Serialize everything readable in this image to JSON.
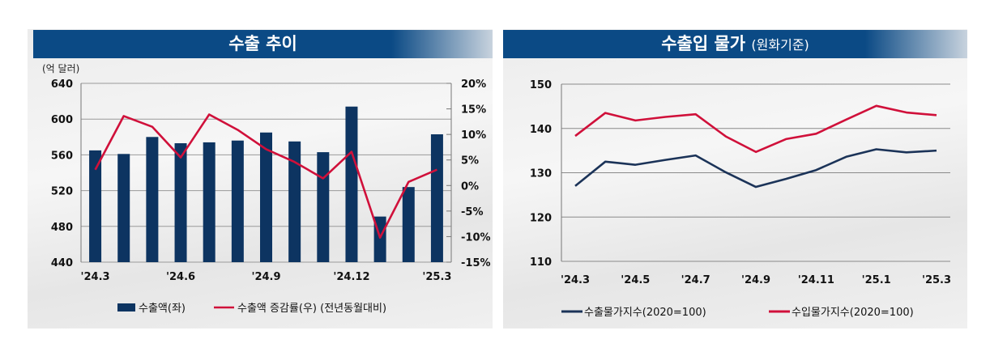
{
  "chart_data": [
    {
      "type": "bar+line",
      "title": "수출 추이",
      "unit_label": "(억 달러)",
      "categories": [
        "'24.3",
        "'24.4",
        "'24.5",
        "'24.6",
        "'24.7",
        "'24.8",
        "'24.9",
        "'24.10",
        "'24.11",
        "'24.12",
        "'25.1",
        "'25.2",
        "'25.3"
      ],
      "x_tick_labels": [
        "'24.3",
        "'24.6",
        "'24.9",
        "'24.12",
        "'25.3"
      ],
      "y_left": {
        "ticks": [
          "640",
          "600",
          "560",
          "520",
          "480",
          "440"
        ],
        "ylim": [
          440,
          640
        ]
      },
      "y_right": {
        "ticks": [
          "20%",
          "15%",
          "10%",
          "5%",
          "0%",
          "-5%",
          "-10%",
          "-15%"
        ],
        "ylim": [
          -15,
          20
        ]
      },
      "series": [
        {
          "name": "수출액(좌)",
          "type": "bar",
          "axis": "left",
          "color": "#0d3461",
          "values": [
            565,
            561,
            580,
            573,
            574,
            576,
            585,
            575,
            563,
            614,
            491,
            524,
            583
          ]
        },
        {
          "name": "수출액 증감률(우) (전년동월대비)",
          "type": "line",
          "axis": "right",
          "color": "#d0103a",
          "values": [
            3.1,
            13.6,
            11.5,
            5.5,
            13.9,
            10.9,
            7.1,
            4.6,
            1.4,
            6.6,
            -10.2,
            0.7,
            3.1
          ]
        }
      ],
      "legend": "bottom"
    },
    {
      "type": "line",
      "title": "수출입 물가",
      "subtitle": "(원화기준)",
      "categories": [
        "'24.3",
        "'24.4",
        "'24.5",
        "'24.6",
        "'24.7",
        "'24.8",
        "'24.9",
        "'24.10",
        "'24.11",
        "'24.12",
        "'25.1",
        "'25.2",
        "'25.3"
      ],
      "x_tick_labels": [
        "'24.3",
        "'24.5",
        "'24.7",
        "'24.9",
        "'24.11",
        "'25.1",
        "'25.3"
      ],
      "y": {
        "ticks": [
          "150",
          "140",
          "130",
          "120",
          "110"
        ],
        "ylim": [
          110,
          150
        ]
      },
      "series": [
        {
          "name": "수출물가지수(2020=100)",
          "color": "#1b3358",
          "values": [
            127.0,
            132.5,
            131.8,
            132.9,
            133.9,
            130.1,
            126.8,
            128.6,
            130.6,
            133.6,
            135.3,
            134.6,
            135.0
          ]
        },
        {
          "name": "수입물가지수(2020=100)",
          "color": "#d0103a",
          "values": [
            138.3,
            143.5,
            141.8,
            142.6,
            143.2,
            138.2,
            134.7,
            137.6,
            138.8,
            142.0,
            145.1,
            143.6,
            143.0
          ]
        }
      ],
      "legend": "bottom"
    }
  ]
}
